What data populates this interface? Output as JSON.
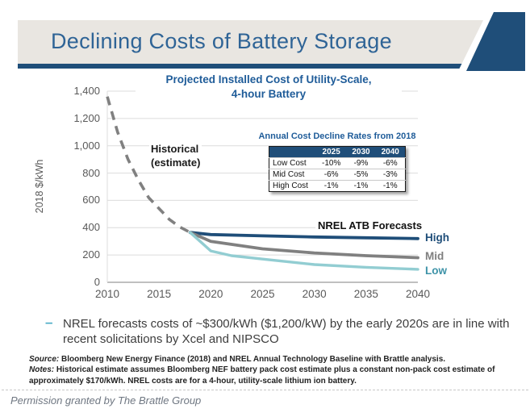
{
  "page": {
    "caption": "Permission granted by The Brattle Group"
  },
  "colors": {
    "accent_navy": "#1F4E79",
    "header_title": "#2F6496",
    "header_bar_bg": "#E9E6E1",
    "chart_heading": "#1F5C99",
    "teal": "#4BACC6",
    "axis_text": "#595959",
    "table_header_bg": "#1F4E79"
  },
  "header": {
    "title": "Declining Costs of Battery Storage"
  },
  "chart_data": {
    "type": "line",
    "title": "Projected Installed Cost of Utility-Scale, 4-hour Battery",
    "title_lines": [
      "Projected Installed Cost of Utility-Scale,",
      "4-hour Battery"
    ],
    "ylabel": "2018 $/kWh",
    "ylim": [
      0,
      1400
    ],
    "ytick_step": 200,
    "yticks": [
      "0",
      "200",
      "400",
      "600",
      "800",
      "1,000",
      "1,200",
      "1,400"
    ],
    "xlim": [
      2010,
      2040
    ],
    "xtick_step": 5,
    "xticks": [
      "2010",
      "2015",
      "2020",
      "2025",
      "2030",
      "2035",
      "2040"
    ],
    "grid": true,
    "legend_position": "line-end-labels-right",
    "annotations": {
      "historical": "Historical\n(estimate)",
      "forecast": "NREL ATB Forecasts"
    },
    "series": [
      {
        "name": "Historical (estimate)",
        "style": "dashed",
        "color": "#808080",
        "width": 3.6,
        "x": [
          2010,
          2011,
          2012,
          2013,
          2014,
          2015,
          2016,
          2017,
          2018
        ],
        "values": [
          1360,
          1100,
          900,
          750,
          620,
          540,
          460,
          405,
          365
        ]
      },
      {
        "name": "High",
        "style": "solid",
        "color": "#1F4E79",
        "label_color": "#1F4E79",
        "width": 3.8,
        "x": [
          2018,
          2020,
          2025,
          2030,
          2035,
          2040
        ],
        "values": [
          365,
          350,
          340,
          332,
          326,
          320
        ]
      },
      {
        "name": "Mid",
        "style": "solid",
        "color": "#808080",
        "label_color": "#7F7F7F",
        "width": 3.8,
        "x": [
          2018,
          2020,
          2025,
          2030,
          2035,
          2040
        ],
        "values": [
          365,
          300,
          245,
          215,
          195,
          180
        ]
      },
      {
        "name": "Low",
        "style": "solid",
        "color": "#92CDD2",
        "label_color": "#3E93A8",
        "width": 3.4,
        "x": [
          2018,
          2020,
          2022,
          2025,
          2030,
          2035,
          2040
        ],
        "values": [
          365,
          230,
          195,
          170,
          130,
          110,
          95
        ]
      }
    ]
  },
  "inset_table": {
    "title": "Annual Cost Decline Rates from 2018",
    "columns": [
      "",
      "2025",
      "2030",
      "2040"
    ],
    "rows": [
      [
        "Low Cost",
        "-10%",
        "-9%",
        "-6%"
      ],
      [
        "Mid Cost",
        "-6%",
        "-5%",
        "-3%"
      ],
      [
        "High Cost",
        "-1%",
        "-1%",
        "-1%"
      ]
    ]
  },
  "bullet": {
    "marker": "–",
    "text": "NREL forecasts costs of ~$300/kWh ($1,200/kW) by the early 2020s are in line with recent solicitations by Xcel and NIPSCO"
  },
  "footnotes": {
    "source_label": "Source:",
    "source_text": " Bloomberg New Energy Finance (2018) and NREL Annual Technology Baseline with Brattle analysis.",
    "notes_label": "Notes:",
    "notes_text": " Historical estimate assumes Bloomberg NEF battery pack cost estimate plus a constant non-pack cost estimate of approximately $170/kWh.  NREL costs are for a 4-hour, utility-scale lithium ion battery."
  }
}
